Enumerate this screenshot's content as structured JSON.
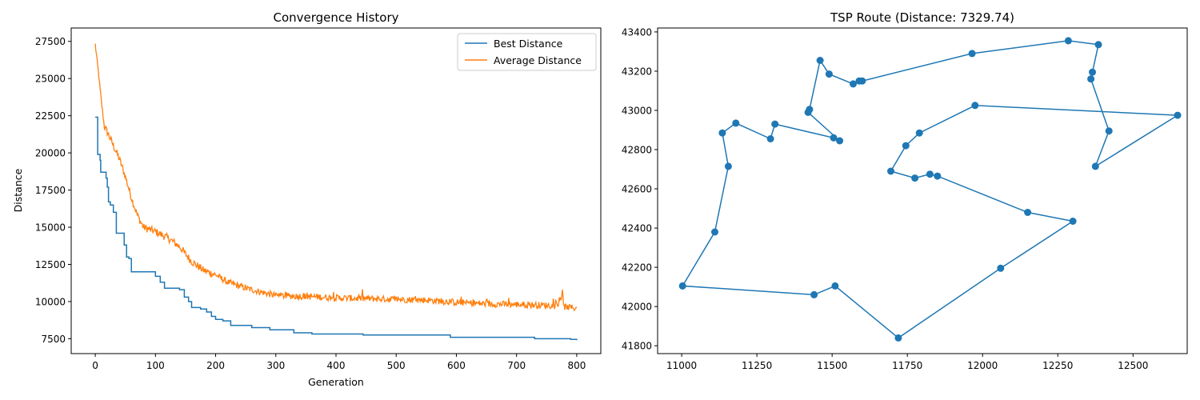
{
  "chart_data": [
    {
      "type": "line",
      "title": "Convergence History",
      "xlabel": "Generation",
      "ylabel": "Distance",
      "xlim": [
        -40,
        840
      ],
      "ylim": [
        6500,
        28400
      ],
      "xticks": [
        0,
        100,
        200,
        300,
        400,
        500,
        600,
        700,
        800
      ],
      "yticks": [
        7500,
        10000,
        12500,
        15000,
        17500,
        20000,
        22500,
        25000,
        27500
      ],
      "legend_position": "upper right",
      "series": [
        {
          "name": "Best Distance",
          "color": "#1f77b4",
          "style": "step",
          "x": [
            0,
            3,
            4,
            8,
            9,
            11,
            12,
            18,
            20,
            22,
            23,
            25,
            30,
            35,
            40,
            48,
            52,
            56,
            60,
            70,
            100,
            108,
            115,
            140,
            148,
            155,
            160,
            175,
            185,
            193,
            200,
            212,
            225,
            230,
            260,
            290,
            330,
            360,
            445,
            590,
            730,
            790,
            800
          ],
          "y": [
            22400,
            22400,
            19900,
            19500,
            18700,
            18700,
            18700,
            18300,
            17700,
            16700,
            16700,
            16500,
            16000,
            14600,
            14600,
            13800,
            13000,
            12900,
            12000,
            12000,
            11700,
            11300,
            10900,
            10800,
            10300,
            10000,
            9600,
            9500,
            9300,
            9000,
            8800,
            8700,
            8400,
            8400,
            8250,
            8100,
            7900,
            7820,
            7750,
            7600,
            7500,
            7450,
            7400
          ]
        },
        {
          "name": "Average Distance",
          "color": "#ff7f0e",
          "style": "noisy",
          "x": [
            0,
            5,
            10,
            15,
            20,
            30,
            40,
            50,
            60,
            70,
            80,
            100,
            120,
            140,
            160,
            180,
            200,
            220,
            250,
            300,
            350,
            400,
            450,
            500,
            550,
            600,
            650,
            700,
            750,
            770,
            800
          ],
          "y": [
            27300,
            25500,
            23500,
            21800,
            21400,
            20500,
            19600,
            18400,
            17000,
            15800,
            15000,
            14700,
            14300,
            13700,
            12700,
            12100,
            11800,
            11300,
            10900,
            10400,
            10350,
            10250,
            10200,
            10150,
            10100,
            9950,
            9850,
            9800,
            9750,
            9700,
            9550
          ]
        }
      ]
    },
    {
      "type": "scatter",
      "title": "TSP Route (Distance: 7329.74)",
      "xlabel": "",
      "ylabel": "",
      "xlim": [
        10920,
        12680
      ],
      "ylim": [
        41760,
        43420
      ],
      "xticks": [
        11000,
        11250,
        11500,
        11750,
        12000,
        12250,
        12500
      ],
      "yticks": [
        41800,
        42000,
        42200,
        42400,
        42600,
        42800,
        43000,
        43200,
        43400
      ],
      "series": [
        {
          "color": "#1f77b4",
          "marker": "o",
          "connected": true,
          "x": [
            12648,
            12375,
            12420,
            12360,
            12365,
            12385,
            12285,
            11965,
            11600,
            11590,
            11570,
            11490,
            11460,
            11425,
            11420,
            11525,
            11505,
            11310,
            11295,
            11180,
            11135,
            11155,
            11110,
            11003,
            11440,
            11510,
            11720,
            12060,
            12300,
            12150,
            11850,
            11825,
            11775,
            11695,
            11745,
            11790,
            11975,
            12648
          ],
          "y": [
            42975,
            42715,
            42895,
            43160,
            43195,
            43335,
            43355,
            43290,
            43150,
            43150,
            43135,
            43185,
            43255,
            43005,
            42990,
            42845,
            42860,
            42930,
            42855,
            42935,
            42885,
            42715,
            42380,
            42105,
            42060,
            42105,
            41840,
            42195,
            42435,
            42480,
            42665,
            42675,
            42655,
            42690,
            42820,
            42885,
            43025,
            42975
          ]
        }
      ]
    }
  ]
}
